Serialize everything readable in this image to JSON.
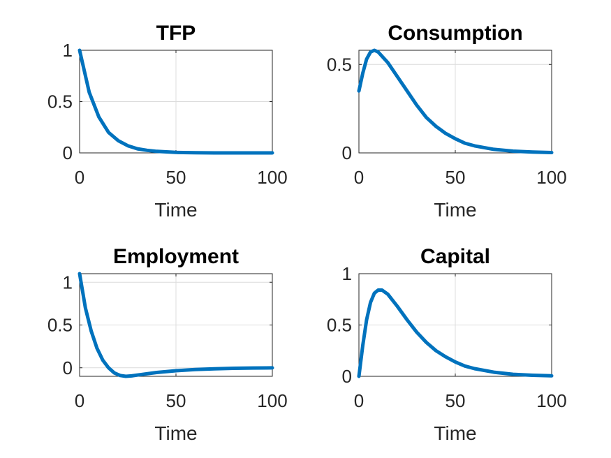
{
  "chart_data": [
    {
      "type": "line",
      "title": "TFP",
      "xlabel": "Time",
      "ylabel": "",
      "xlim": [
        0,
        100
      ],
      "ylim": [
        0,
        1
      ],
      "xticks": [
        0,
        50,
        100
      ],
      "yticks": [
        0,
        0.5,
        1
      ],
      "xtick_labels": [
        "0",
        "50",
        "100"
      ],
      "ytick_labels": [
        "0",
        "0.5",
        "1"
      ],
      "grid": true,
      "legend": "none",
      "color": "#0072BD",
      "x": [
        0,
        5,
        10,
        15,
        20,
        25,
        30,
        35,
        40,
        50,
        60,
        70,
        80,
        90,
        100
      ],
      "y": [
        1.0,
        0.59,
        0.35,
        0.2,
        0.12,
        0.07,
        0.04,
        0.025,
        0.015,
        0.005,
        0.002,
        0.0,
        0.0,
        0.0,
        0.0
      ]
    },
    {
      "type": "line",
      "title": "Consumption",
      "xlabel": "Time",
      "ylabel": "",
      "xlim": [
        0,
        100
      ],
      "ylim": [
        0,
        0.58
      ],
      "xticks": [
        0,
        50,
        100
      ],
      "yticks": [
        0,
        0.5
      ],
      "xtick_labels": [
        "0",
        "50",
        "100"
      ],
      "ytick_labels": [
        "0",
        "0.5"
      ],
      "grid": true,
      "legend": "none",
      "color": "#0072BD",
      "x": [
        0,
        2,
        4,
        6,
        8,
        10,
        15,
        20,
        25,
        30,
        35,
        40,
        45,
        50,
        55,
        60,
        70,
        80,
        90,
        100
      ],
      "y": [
        0.35,
        0.45,
        0.53,
        0.57,
        0.58,
        0.57,
        0.51,
        0.43,
        0.35,
        0.27,
        0.2,
        0.15,
        0.11,
        0.08,
        0.055,
        0.04,
        0.02,
        0.01,
        0.005,
        0.002
      ]
    },
    {
      "type": "line",
      "title": "Employment",
      "xlabel": "Time",
      "ylabel": "",
      "xlim": [
        0,
        100
      ],
      "ylim": [
        -0.1,
        1.1
      ],
      "xticks": [
        0,
        50,
        100
      ],
      "yticks": [
        0,
        0.5,
        1
      ],
      "xtick_labels": [
        "0",
        "50",
        "100"
      ],
      "ytick_labels": [
        "0",
        "0.5",
        "1"
      ],
      "grid": true,
      "legend": "none",
      "color": "#0072BD",
      "x": [
        0,
        3,
        6,
        9,
        12,
        15,
        18,
        21,
        24,
        27,
        30,
        35,
        40,
        50,
        60,
        70,
        80,
        90,
        100
      ],
      "y": [
        1.1,
        0.7,
        0.43,
        0.23,
        0.09,
        0.0,
        -0.06,
        -0.09,
        -0.1,
        -0.095,
        -0.085,
        -0.07,
        -0.055,
        -0.035,
        -0.02,
        -0.012,
        -0.006,
        -0.003,
        -0.001
      ]
    },
    {
      "type": "line",
      "title": "Capital",
      "xlabel": "Time",
      "ylabel": "",
      "xlim": [
        0,
        100
      ],
      "ylim": [
        0,
        1
      ],
      "xticks": [
        0,
        50,
        100
      ],
      "yticks": [
        0,
        0.5,
        1
      ],
      "xtick_labels": [
        "0",
        "50",
        "100"
      ],
      "ytick_labels": [
        "0",
        "0.5",
        "1"
      ],
      "grid": true,
      "legend": "none",
      "color": "#0072BD",
      "x": [
        0,
        2,
        4,
        6,
        8,
        10,
        12,
        15,
        20,
        25,
        30,
        35,
        40,
        45,
        50,
        55,
        60,
        70,
        80,
        90,
        100
      ],
      "y": [
        0.0,
        0.3,
        0.55,
        0.72,
        0.81,
        0.84,
        0.84,
        0.8,
        0.68,
        0.55,
        0.43,
        0.33,
        0.25,
        0.19,
        0.14,
        0.1,
        0.075,
        0.04,
        0.02,
        0.01,
        0.005
      ]
    }
  ]
}
